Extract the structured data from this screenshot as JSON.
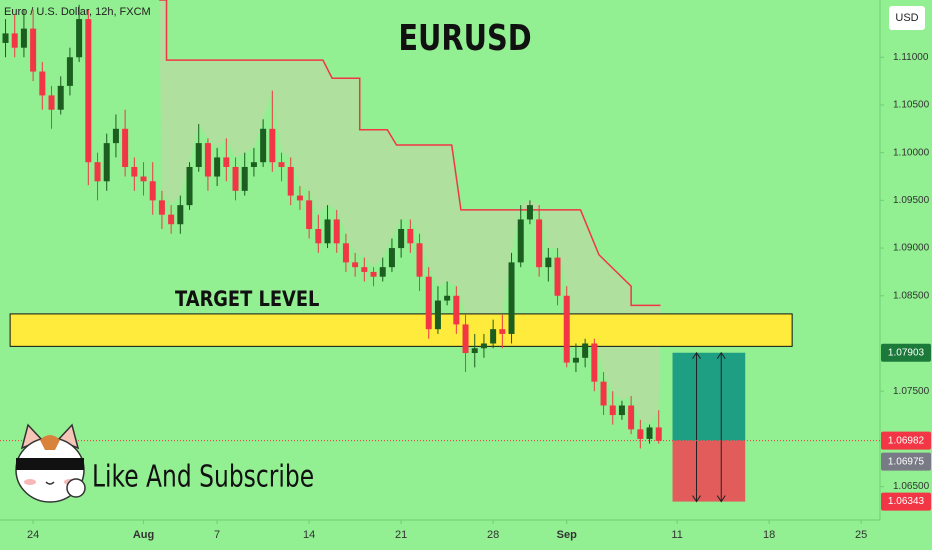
{
  "chart_data": {
    "type": "candlestick",
    "title": "EURUSD",
    "symbol": "Euro / U.S. Dollar, 12h, FXCM",
    "currency": "USD",
    "x": [
      -3,
      -2,
      -1,
      0,
      1,
      2,
      3,
      4,
      5,
      6,
      7,
      8,
      9,
      10,
      11,
      12,
      13,
      14,
      15,
      16,
      17,
      18,
      19,
      20,
      21,
      22,
      23,
      24,
      25,
      26,
      27,
      28,
      29,
      30,
      31,
      32,
      33,
      34,
      35,
      36,
      37,
      38,
      39,
      40,
      41,
      42,
      43,
      44,
      45,
      46,
      47,
      48,
      49,
      50,
      51,
      52,
      53,
      54,
      55,
      56,
      57,
      58,
      59,
      60,
      61,
      62,
      63,
      64,
      65,
      66,
      67,
      68
    ],
    "open": [
      1.1115,
      1.1125,
      1.111,
      1.113,
      1.1085,
      1.106,
      1.1045,
      1.107,
      1.11,
      1.114,
      1.099,
      1.097,
      1.101,
      1.1025,
      1.0985,
      1.0975,
      1.097,
      1.095,
      1.0935,
      1.0925,
      1.0945,
      1.0985,
      1.101,
      1.0975,
      1.0995,
      1.0985,
      1.096,
      1.0985,
      1.099,
      1.1025,
      1.099,
      1.0985,
      1.0955,
      1.095,
      1.092,
      1.0905,
      1.093,
      1.0905,
      1.0885,
      1.088,
      1.0875,
      1.087,
      1.088,
      1.09,
      1.092,
      1.0905,
      1.087,
      1.0815,
      1.0845,
      1.085,
      1.082,
      1.079,
      1.0795,
      1.08,
      1.0815,
      1.081,
      1.0885,
      1.093,
      1.093,
      1.088,
      1.089,
      1.085,
      1.078,
      1.0785,
      1.08,
      1.076,
      1.0735,
      1.0725,
      1.0735,
      1.071,
      1.07,
      1.0712
    ],
    "high": [
      1.114,
      1.1145,
      1.115,
      1.115,
      1.1095,
      1.107,
      1.108,
      1.111,
      1.1155,
      1.115,
      1.1,
      1.102,
      1.104,
      1.1045,
      1.0995,
      1.099,
      1.099,
      1.096,
      1.0945,
      1.0955,
      1.099,
      1.103,
      1.1015,
      1.1005,
      1.1015,
      1.0995,
      1.1,
      1.1005,
      1.1035,
      1.1065,
      1.1,
      1.0995,
      1.0965,
      1.096,
      1.0935,
      1.0945,
      1.094,
      1.0915,
      1.0895,
      1.089,
      1.088,
      1.089,
      1.091,
      1.093,
      1.093,
      1.0915,
      1.088,
      1.086,
      1.0865,
      1.086,
      1.083,
      1.081,
      1.081,
      1.0825,
      1.083,
      1.0895,
      1.0945,
      1.095,
      1.0945,
      1.09,
      1.09,
      1.086,
      1.08,
      1.0805,
      1.0805,
      1.077,
      1.075,
      1.074,
      1.0745,
      1.072,
      1.0715,
      1.073
    ],
    "low": [
      1.11,
      1.11,
      1.11,
      1.1075,
      1.1045,
      1.1025,
      1.104,
      1.106,
      1.1095,
      1.0966,
      1.095,
      1.096,
      1.0995,
      1.0975,
      1.096,
      1.0955,
      1.0935,
      1.092,
      1.0915,
      1.0915,
      1.094,
      1.098,
      1.096,
      1.0965,
      1.097,
      1.095,
      1.0955,
      1.0975,
      1.0985,
      1.098,
      1.097,
      1.0945,
      1.094,
      1.091,
      1.0895,
      1.09,
      1.0895,
      1.0875,
      1.087,
      1.0865,
      1.086,
      1.0865,
      1.0875,
      1.089,
      1.0895,
      1.0855,
      1.0805,
      1.081,
      1.084,
      1.081,
      1.077,
      1.0775,
      1.0785,
      1.0795,
      1.0795,
      1.08,
      1.088,
      1.0925,
      1.087,
      1.0865,
      1.084,
      1.0775,
      1.077,
      1.0775,
      1.075,
      1.0725,
      1.0715,
      1.072,
      1.0705,
      1.069,
      1.0695,
      1.0695
    ],
    "close": [
      1.1125,
      1.111,
      1.113,
      1.1085,
      1.106,
      1.1045,
      1.107,
      1.11,
      1.114,
      1.099,
      1.097,
      1.101,
      1.1025,
      1.0985,
      1.0975,
      1.097,
      1.095,
      1.0935,
      1.0925,
      1.0945,
      1.0985,
      1.101,
      1.0975,
      1.0995,
      1.0985,
      1.096,
      1.0985,
      1.099,
      1.1025,
      1.099,
      1.0985,
      1.0955,
      1.095,
      1.092,
      1.0905,
      1.093,
      1.0905,
      1.0885,
      1.088,
      1.0875,
      1.087,
      1.088,
      1.09,
      1.092,
      1.0905,
      1.087,
      1.0815,
      1.0845,
      1.085,
      1.082,
      1.079,
      1.0795,
      1.08,
      1.0815,
      1.081,
      1.0885,
      1.093,
      1.0945,
      1.088,
      1.089,
      1.085,
      1.078,
      1.0785,
      1.08,
      1.076,
      1.0735,
      1.0725,
      1.0735,
      1.071,
      1.07,
      1.0712,
      1.0698
    ],
    "up_color": "#1b5e20",
    "down_color": "#f23645",
    "stop_line": {
      "color": "#f23645",
      "x": [
        13.7,
        14.5,
        14.5,
        31.5,
        32.5,
        32.5,
        35.5,
        35.5,
        38.5,
        39.5,
        39.5,
        45.5,
        46.5,
        46.5,
        59.5,
        61.5,
        65,
        65,
        68.2
      ],
      "values": [
        1.116,
        1.116,
        1.1097,
        1.1097,
        1.1078,
        1.1078,
        1.1078,
        1.1024,
        1.1024,
        1.1008,
        1.1008,
        1.1008,
        1.094,
        1.094,
        1.094,
        1.0893,
        1.086,
        1.084,
        1.084
      ]
    },
    "target_zone": {
      "label": "TARGET LEVEL",
      "low": 1.0797,
      "high": 1.0831,
      "x": [
        -2.5,
        82.5
      ],
      "color": "#ffeb3b"
    },
    "position": {
      "x": [
        69.5,
        77.4
      ],
      "entry": 1.06982,
      "target": 1.07903,
      "stop": 1.06343,
      "profit_color": "#1e9e82",
      "loss_color": "#e35c5c"
    },
    "price_labels": [
      {
        "value": 1.07903,
        "color": "#1b7a3a"
      },
      {
        "value": 1.06982,
        "color": "#f23645"
      },
      {
        "value": 1.06975,
        "color": "#787b86"
      },
      {
        "value": 1.06343,
        "color": "#f23645"
      }
    ],
    "xlim": [
      -3.6,
      92.05
    ],
    "ylim": [
      1.0615,
      1.116
    ],
    "xticks": [
      {
        "value": 0,
        "label": "24"
      },
      {
        "value": 12,
        "label": "Aug"
      },
      {
        "value": 20,
        "label": "7"
      },
      {
        "value": 30,
        "label": "14"
      },
      {
        "value": 40,
        "label": "21"
      },
      {
        "value": 50,
        "label": "28"
      },
      {
        "value": 58,
        "label": "Sep"
      },
      {
        "value": 70,
        "label": "11"
      },
      {
        "value": 80,
        "label": "18"
      },
      {
        "value": 90,
        "label": "25"
      }
    ],
    "yticks": [
      {
        "value": 1.065,
        "label": "1.06500"
      },
      {
        "value": 1.075,
        "label": "1.07500"
      },
      {
        "value": 1.085,
        "label": "1.08500"
      },
      {
        "value": 1.09,
        "label": "1.09000"
      },
      {
        "value": 1.095,
        "label": "1.09500"
      },
      {
        "value": 1.1,
        "label": "1.10000"
      },
      {
        "value": 1.105,
        "label": "1.10500"
      },
      {
        "value": 1.11,
        "label": "1.11000"
      }
    ],
    "footer_text": "Like And Subscribe"
  }
}
